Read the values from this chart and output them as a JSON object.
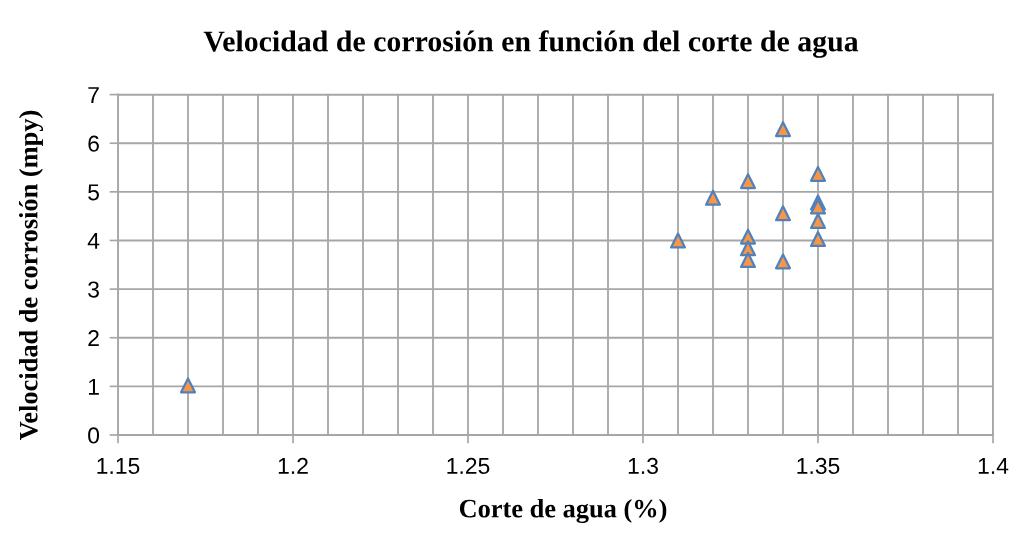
{
  "chart_data": {
    "type": "scatter",
    "title": "Velocidad de corrosión en función del corte de agua",
    "xlabel": "Corte de agua (%)",
    "ylabel": "Velocidad de corrosión (mpy)",
    "series": [
      {
        "color": "#f79646",
        "x": [
          1.17,
          1.31,
          1.32,
          1.33,
          1.33,
          1.33,
          1.33,
          1.34,
          1.34,
          1.34,
          1.35,
          1.35,
          1.35,
          1.35,
          1.35
        ],
        "values": [
          1.02,
          4.0,
          4.88,
          5.22,
          4.08,
          3.84,
          3.6,
          6.29,
          4.56,
          3.57,
          5.37,
          4.78,
          4.7,
          4.4,
          4.03
        ]
      }
    ],
    "xlim": [
      1.15,
      1.4
    ],
    "xticks": [
      1.15,
      {
        "value": 1.16,
        "label": null
      },
      {
        "value": 1.17,
        "label": null
      },
      {
        "value": 1.18,
        "label": null
      },
      {
        "value": 1.19,
        "label": null
      },
      1.2,
      {
        "value": 1.21,
        "label": null
      },
      {
        "value": 1.22,
        "label": null
      },
      {
        "value": 1.23,
        "label": null
      },
      {
        "value": 1.24,
        "label": null
      },
      1.25,
      {
        "value": 1.26,
        "label": null
      },
      {
        "value": 1.27,
        "label": null
      },
      {
        "value": 1.28,
        "label": null
      },
      {
        "value": 1.29,
        "label": null
      },
      1.3,
      {
        "value": 1.31,
        "label": null
      },
      {
        "value": 1.32,
        "label": null
      },
      {
        "value": 1.33,
        "label": null
      },
      {
        "value": 1.34,
        "label": null
      },
      1.35,
      {
        "value": 1.36,
        "label": null
      },
      {
        "value": 1.37,
        "label": null
      },
      {
        "value": 1.38,
        "label": null
      },
      {
        "value": 1.39,
        "label": null
      },
      1.4
    ],
    "ylim": [
      0,
      7
    ],
    "yticks": [
      0,
      1,
      2,
      3,
      4,
      5,
      6,
      7
    ],
    "grid": true,
    "marker": "triangle"
  }
}
